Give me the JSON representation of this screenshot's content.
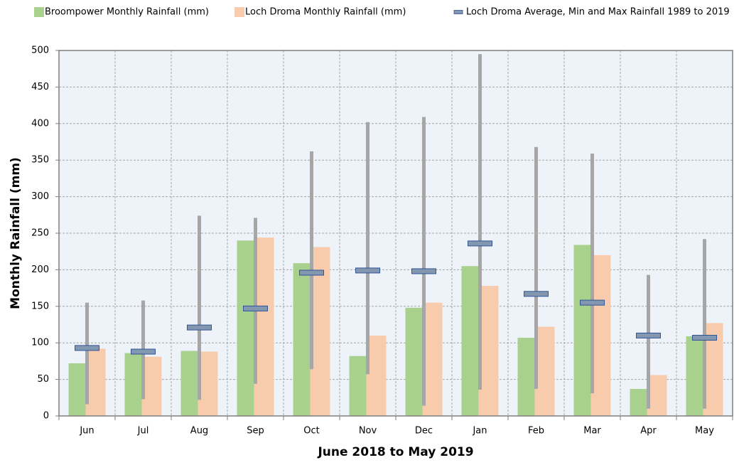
{
  "chart_data": {
    "type": "bar",
    "x_label": "June 2018 to May 2019",
    "y_label": "Monthly Rainfall (mm)",
    "categories": [
      "Jun",
      "Jul",
      "Aug",
      "Sep",
      "Oct",
      "Nov",
      "Dec",
      "Jan",
      "Feb",
      "Mar",
      "Apr",
      "May"
    ],
    "series": [
      {
        "name": "Broompower Monthly Rainfall (mm)",
        "color": "#a9d18e",
        "values": [
          72,
          86,
          89,
          240,
          209,
          82,
          148,
          205,
          107,
          234,
          37,
          109
        ]
      },
      {
        "name": "Loch Droma Monthly Rainfall (mm)",
        "color": "#f8cbad",
        "values": [
          92,
          81,
          88,
          244,
          231,
          110,
          155,
          178,
          122,
          220,
          56,
          127
        ]
      }
    ],
    "range": {
      "name": "Loch Droma Average, Min and Max Rainfall 1989 to 2019",
      "color": "#a6a6a6",
      "marker_color": "#8497b0",
      "average": [
        93,
        88,
        121,
        147,
        196,
        199,
        198,
        236,
        167,
        155,
        110,
        107
      ],
      "min": [
        16,
        23,
        22,
        44,
        64,
        57,
        14,
        36,
        37,
        31,
        10,
        10
      ],
      "max": [
        155,
        158,
        274,
        271,
        362,
        402,
        409,
        495,
        368,
        359,
        193,
        242
      ]
    },
    "ylim": [
      0,
      500
    ],
    "yticks": [
      0,
      50,
      100,
      150,
      200,
      250,
      300,
      350,
      400,
      450,
      500
    ],
    "grid": true,
    "legend": "top"
  }
}
